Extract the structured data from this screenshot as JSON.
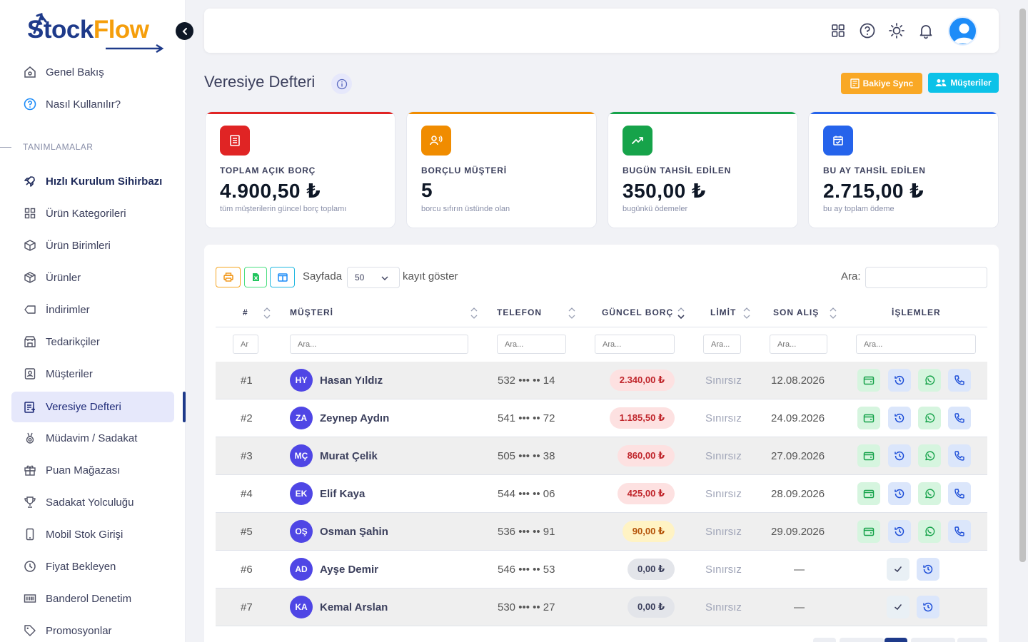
{
  "app": {
    "logo_part1": "Stock",
    "logo_part2": "Flow"
  },
  "sidebar": {
    "top_items": [
      {
        "label": "Genel Bakış",
        "icon": "home-icon"
      },
      {
        "label": "Nasıl Kullanılır?",
        "icon": "help-circle-icon"
      }
    ],
    "section_title": "TANIMLAMALAR",
    "items": [
      {
        "label": "Hızlı Kurulum Sihirbazı",
        "icon": "rocket-icon"
      },
      {
        "label": "Ürün Kategorileri",
        "icon": "grid-icon"
      },
      {
        "label": "Ürün Birimleri",
        "icon": "box-icon"
      },
      {
        "label": "Ürünler",
        "icon": "package-icon"
      },
      {
        "label": "İndirimler",
        "icon": "tag-outline-icon"
      },
      {
        "label": "Tedarikçiler",
        "icon": "store-icon"
      },
      {
        "label": "Müşteriler",
        "icon": "user-badge-icon"
      },
      {
        "label": "Veresiye Defteri",
        "icon": "ledger-icon"
      },
      {
        "label": "Müdavim / Sadakat",
        "icon": "medal-icon"
      },
      {
        "label": "Puan Mağazası",
        "icon": "gift-icon"
      },
      {
        "label": "Sadakat Yolculuğu",
        "icon": "trophy-icon"
      },
      {
        "label": "Mobil Stok Girişi",
        "icon": "mobile-icon"
      },
      {
        "label": "Fiyat Bekleyen",
        "icon": "clock-icon"
      },
      {
        "label": "Banderol Denetim",
        "icon": "barcode-icon"
      },
      {
        "label": "Promosyonlar",
        "icon": "promo-tag-icon"
      }
    ]
  },
  "header": {
    "icons": [
      "apps-grid-icon",
      "help-icon",
      "sun-icon",
      "bell-icon",
      "user-avatar-icon"
    ]
  },
  "page": {
    "title": "Veresiye Defteri",
    "btn_sync": "Bakiye Sync",
    "btn_customers": "Müşteriler"
  },
  "stats": [
    {
      "label": "TOPLAM AÇIK BORÇ",
      "value": "4.900,50 ₺",
      "sub": "tüm müşterilerin güncel borç toplamı",
      "color": "#e02424"
    },
    {
      "label": "BORÇLU MÜŞTERİ",
      "value": "5",
      "sub": "borcu sıfırın üstünde olan",
      "color": "#f08c00"
    },
    {
      "label": "BUGÜN TAHSİL EDİLEN",
      "value": "350,00 ₺",
      "sub": "bugünkü ödemeler",
      "color": "#16a34a"
    },
    {
      "label": "BU AY TAHSİL EDİLEN",
      "value": "2.715,00 ₺",
      "sub": "bu ay toplam ödeme",
      "color": "#2563eb"
    }
  ],
  "table": {
    "per_page_prefix": "Sayfada",
    "per_page_value": "50",
    "per_page_suffix": "kayıt göster",
    "search_label": "Ara:",
    "columns": [
      "#",
      "MÜŞTERİ",
      "TELEFON",
      "GÜNCEL BORÇ",
      "LİMİT",
      "SON ALIŞ",
      "İŞLEMLER"
    ],
    "filter_placeholders": [
      "Ar",
      "Ara...",
      "Ara...",
      "Ara...",
      "Ara...",
      "Ara...",
      "Ara..."
    ],
    "rows": [
      {
        "no": "#1",
        "initials": "HY",
        "name": "Hasan Yıldız",
        "phone": "532 ••• •• 14",
        "debt": "2.340,00 ₺",
        "debt_level": "red",
        "limit": "Sınırsız",
        "last": "12.08.2026",
        "actions": "full"
      },
      {
        "no": "#2",
        "initials": "ZA",
        "name": "Zeynep Aydın",
        "phone": "541 ••• •• 72",
        "debt": "1.185,50 ₺",
        "debt_level": "red",
        "limit": "Sınırsız",
        "last": "24.09.2026",
        "actions": "full"
      },
      {
        "no": "#3",
        "initials": "MÇ",
        "name": "Murat Çelik",
        "phone": "505 ••• •• 38",
        "debt": "860,00 ₺",
        "debt_level": "red",
        "limit": "Sınırsız",
        "last": "27.09.2026",
        "actions": "full"
      },
      {
        "no": "#4",
        "initials": "EK",
        "name": "Elif Kaya",
        "phone": "544 ••• •• 06",
        "debt": "425,00 ₺",
        "debt_level": "red",
        "limit": "Sınırsız",
        "last": "28.09.2026",
        "actions": "full"
      },
      {
        "no": "#5",
        "initials": "OŞ",
        "name": "Osman Şahin",
        "phone": "536 ••• •• 91",
        "debt": "90,00 ₺",
        "debt_level": "yellow",
        "limit": "Sınırsız",
        "last": "29.09.2026",
        "actions": "full"
      },
      {
        "no": "#6",
        "initials": "AD",
        "name": "Ayşe Demir",
        "phone": "546 ••• •• 53",
        "debt": "0,00 ₺",
        "debt_level": "gray",
        "limit": "Sınırsız",
        "last": "—",
        "actions": "short"
      },
      {
        "no": "#7",
        "initials": "KA",
        "name": "Kemal Arslan",
        "phone": "530 ••• •• 27",
        "debt": "0,00 ₺",
        "debt_level": "gray",
        "limit": "Sınırsız",
        "last": "—",
        "actions": "short"
      }
    ]
  }
}
